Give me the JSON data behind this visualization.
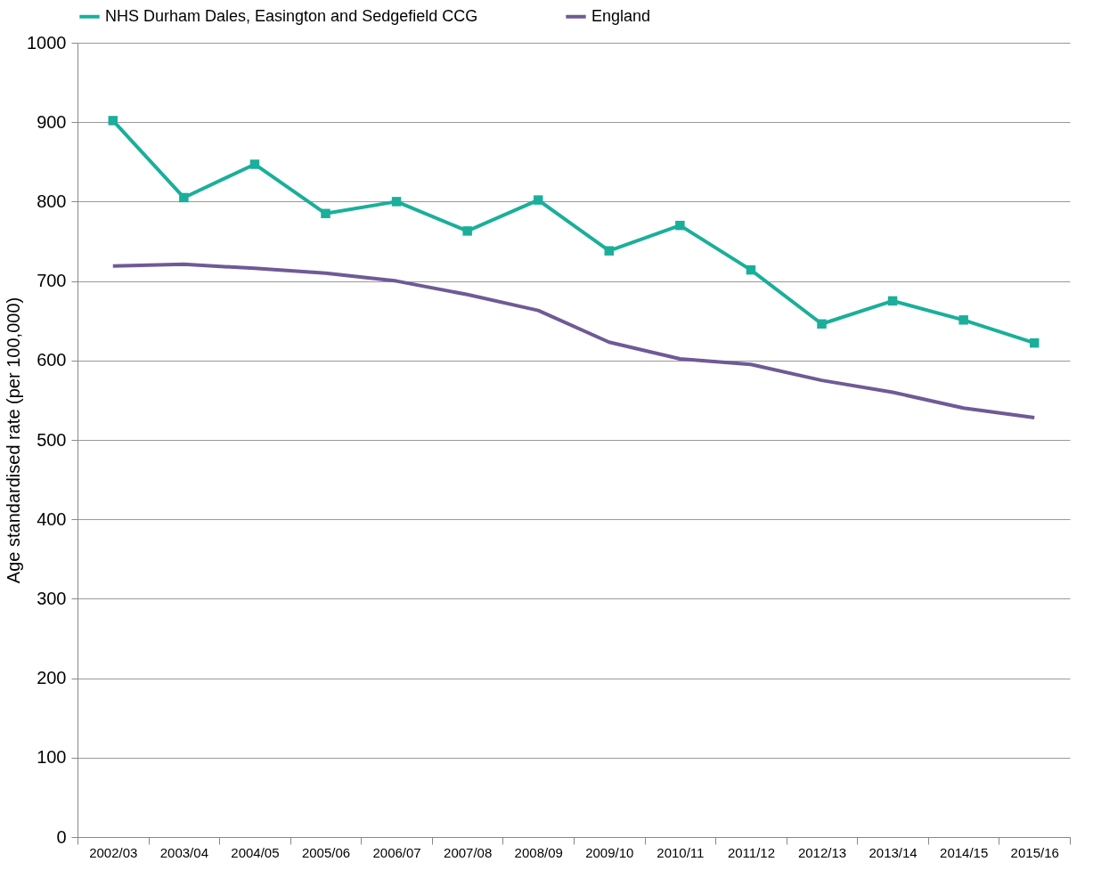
{
  "chart_data": {
    "type": "line",
    "ylabel": "Age standardised rate (per 100,000)",
    "categories": [
      "2002/03",
      "2003/04",
      "2004/05",
      "2005/06",
      "2006/07",
      "2007/08",
      "2008/09",
      "2009/10",
      "2010/11",
      "2011/12",
      "2012/13",
      "2013/14",
      "2014/15",
      "2015/16"
    ],
    "series": [
      {
        "name": "NHS Durham Dales, Easington and Sedgefield CCG",
        "color": "#1aaf9a",
        "marker": "square",
        "values": [
          902,
          805,
          847,
          785,
          800,
          763,
          802,
          738,
          770,
          714,
          646,
          675,
          651,
          622
        ]
      },
      {
        "name": "England",
        "color": "#6f5a96",
        "marker": "none",
        "values": [
          719,
          721,
          716,
          710,
          700,
          683,
          663,
          623,
          602,
          595,
          575,
          560,
          540,
          528
        ]
      }
    ],
    "ylim": [
      0,
      1000
    ],
    "yticks": [
      0,
      100,
      200,
      300,
      400,
      500,
      600,
      700,
      800,
      900,
      1000
    ],
    "grid": "y",
    "legend": "top"
  }
}
